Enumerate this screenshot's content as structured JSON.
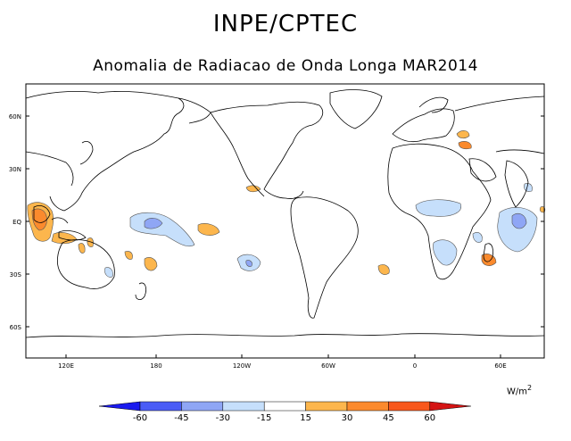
{
  "header": {
    "title": "INPE/CPTEC",
    "subtitle": "Anomalia de Radiacao de Onda Longa MAR2014"
  },
  "axes": {
    "lat_labels": [
      "60N",
      "30N",
      "EQ",
      "30S",
      "60S"
    ],
    "lon_labels": [
      "120E",
      "180",
      "120W",
      "60W",
      "0",
      "60E"
    ]
  },
  "legend": {
    "units_base": "W/m",
    "units_exp": "2",
    "ticks": [
      "-60",
      "-45",
      "-30",
      "-15",
      "15",
      "30",
      "45",
      "60"
    ],
    "colors": [
      "#1a1aee",
      "#4a5cf6",
      "#8fa6f5",
      "#c6dffb",
      "#ffffff",
      "#fcb64d",
      "#fb8a2d",
      "#f8581c",
      "#d41414"
    ]
  },
  "chart_data": {
    "type": "heatmap",
    "variable": "Anomalia de Radiacao de Onda Longa",
    "period": "MAR2014",
    "units": "W/m2",
    "contour_levels": [
      -60,
      -45,
      -30,
      -15,
      15,
      30,
      45,
      60
    ],
    "lon_range": [
      100,
      460
    ],
    "lat_range": [
      -78,
      78
    ],
    "anomaly_regions": [
      {
        "name": "Maritime Continent",
        "sign": "positive",
        "level": 30
      },
      {
        "name": "Northern Australia",
        "sign": "positive",
        "level": 15
      },
      {
        "name": "Equatorial Central Pacific",
        "sign": "negative",
        "level": -30
      },
      {
        "name": "South Pacific",
        "sign": "negative",
        "level": -30
      },
      {
        "name": "Equatorial Africa",
        "sign": "negative",
        "level": -15
      },
      {
        "name": "Western Indian Ocean",
        "sign": "negative",
        "level": -30
      },
      {
        "name": "Madagascar",
        "sign": "positive",
        "level": 15
      },
      {
        "name": "Middle East",
        "sign": "positive",
        "level": 15
      }
    ]
  }
}
